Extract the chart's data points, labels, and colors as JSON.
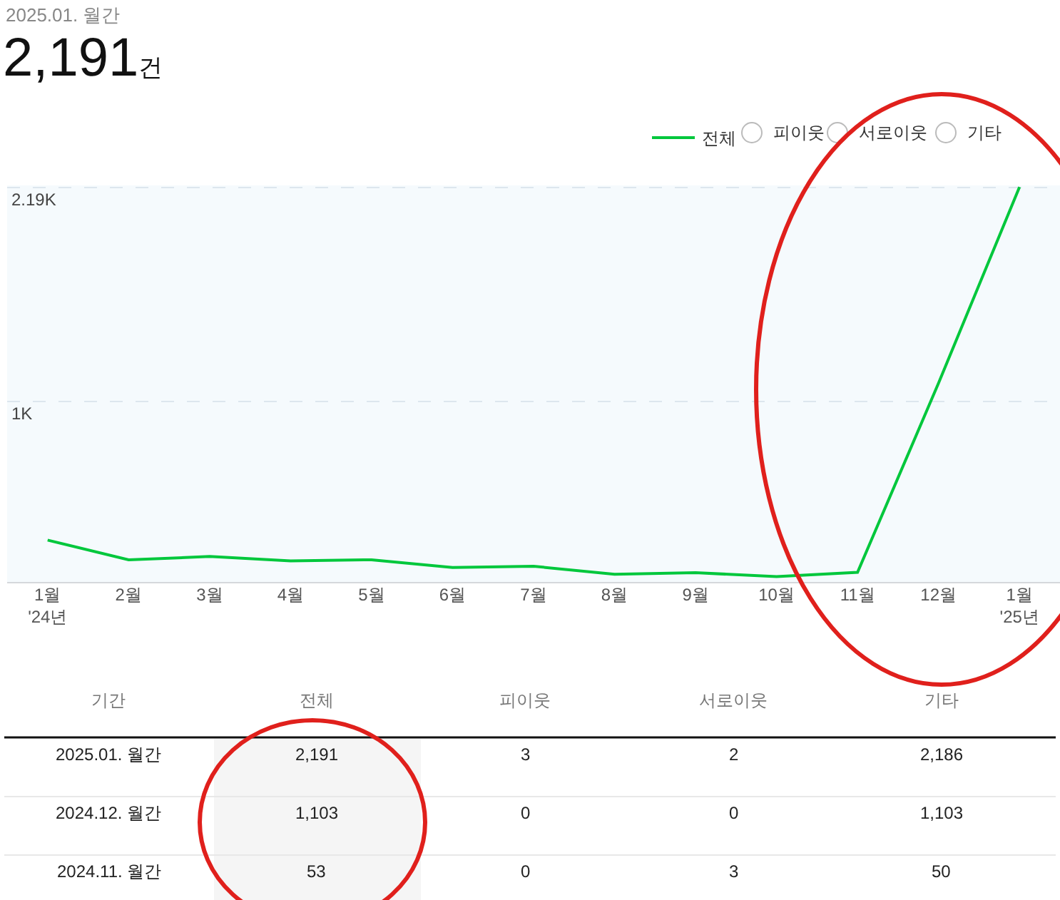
{
  "chart_data": [
    {
      "type": "line",
      "title": "2025.01. 월간",
      "subtitle": "2,191건",
      "categories": [
        "1월\n'24년",
        "2월",
        "3월",
        "4월",
        "5월",
        "6월",
        "7월",
        "8월",
        "9월",
        "10월",
        "11월",
        "12월",
        "1월\n'25년"
      ],
      "series": [
        {
          "name": "전체",
          "color": "#00c73c",
          "values": [
            232,
            123,
            141,
            117,
            123,
            80,
            87,
            43,
            51,
            30,
            53,
            1103,
            2191
          ]
        }
      ],
      "ylim": [
        0,
        2200
      ],
      "yticks": [
        {
          "value": 1000,
          "label": "1K"
        },
        {
          "value": 2190,
          "label": "2.19K"
        }
      ],
      "grid": "y",
      "legend": "top right",
      "marker": "none",
      "line_style": "solid",
      "annotations": [
        "피이웃",
        "서로이웃",
        "기타"
      ]
    },
    {
      "type": "other",
      "categories": [
        "기간",
        "전체",
        "피이웃",
        "서로이웃",
        "기타"
      ],
      "y_categories": [
        "2025.01. 월간",
        "2024.12. 월간",
        "2024.11. 월간"
      ],
      "cell_labels": [
        [
          "2,191",
          "3",
          "2",
          "2,186"
        ],
        [
          "1,103",
          "0",
          "0",
          "1,103"
        ],
        [
          "53",
          "0",
          "3",
          "50"
        ]
      ]
    }
  ]
}
